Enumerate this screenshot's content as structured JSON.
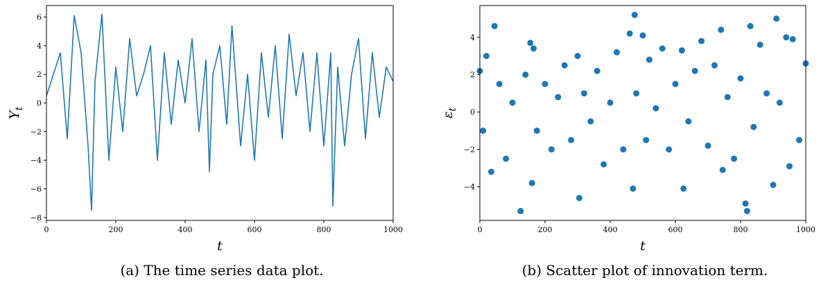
{
  "captions": {
    "a": "(a) The time series data plot.",
    "b": "(b) Scatter plot of innovation term."
  },
  "chart_data": [
    {
      "type": "line",
      "xlabel": "t",
      "ylabel": "Y_t",
      "xlim": [
        0,
        1000
      ],
      "ylim": [
        -8.2,
        6.8
      ],
      "xticks": [
        0,
        200,
        400,
        600,
        800,
        1000
      ],
      "yticks": [
        -8,
        -6,
        -4,
        -2,
        0,
        2,
        4,
        6
      ],
      "color": "#1f77b4",
      "grid": false,
      "series": [
        {
          "x": [
            0,
            20,
            40,
            60,
            80,
            100,
            120,
            130,
            140,
            160,
            180,
            200,
            220,
            240,
            260,
            280,
            300,
            320,
            340,
            360,
            380,
            400,
            420,
            440,
            460,
            470,
            480,
            500,
            520,
            535,
            560,
            580,
            600,
            620,
            640,
            660,
            680,
            700,
            720,
            740,
            760,
            780,
            800,
            820,
            826,
            840,
            860,
            880,
            900,
            920,
            940,
            960,
            980,
            1000
          ],
          "values": [
            0.5,
            2.0,
            3.5,
            -2.5,
            6.1,
            3.5,
            -3.0,
            -7.5,
            1.5,
            6.2,
            -4.0,
            2.5,
            -2.0,
            4.5,
            0.5,
            2.0,
            4.0,
            -4.0,
            3.5,
            -1.5,
            3.0,
            0.0,
            4.5,
            -2.0,
            3.0,
            -4.8,
            2.0,
            4.0,
            -1.5,
            5.4,
            -3.0,
            2.0,
            -4.0,
            3.5,
            -1.0,
            4.0,
            -2.5,
            4.8,
            0.5,
            3.5,
            -2.0,
            3.5,
            -3.0,
            3.5,
            -7.2,
            2.5,
            -3.0,
            2.0,
            4.5,
            -2.5,
            3.5,
            -1.0,
            2.5,
            1.5
          ]
        }
      ]
    },
    {
      "type": "scatter",
      "xlabel": "t",
      "ylabel": "ε_t",
      "xlim": [
        0,
        1000
      ],
      "ylim": [
        -5.8,
        5.7
      ],
      "xticks": [
        0,
        200,
        400,
        600,
        800,
        1000
      ],
      "yticks": [
        -4,
        -2,
        0,
        2,
        4
      ],
      "color": "#1f77b4",
      "grid": false,
      "series": [
        {
          "x": [
            0,
            10,
            20,
            35,
            45,
            60,
            80,
            100,
            125,
            140,
            155,
            160,
            165,
            175,
            200,
            220,
            240,
            260,
            280,
            300,
            305,
            320,
            340,
            360,
            380,
            400,
            420,
            440,
            460,
            470,
            475,
            480,
            500,
            510,
            520,
            540,
            560,
            580,
            600,
            620,
            625,
            640,
            660,
            680,
            700,
            720,
            740,
            745,
            760,
            780,
            800,
            815,
            820,
            830,
            840,
            860,
            880,
            900,
            910,
            920,
            940,
            950,
            960,
            980,
            1000
          ],
          "values": [
            2.2,
            -1.0,
            3.0,
            -3.2,
            4.6,
            1.5,
            -2.5,
            0.5,
            -5.3,
            2.0,
            3.7,
            -3.8,
            3.4,
            -1.0,
            1.5,
            -2.0,
            0.8,
            2.5,
            -1.5,
            3.0,
            -4.6,
            1.0,
            -0.5,
            2.2,
            -2.8,
            0.5,
            3.2,
            -2.0,
            4.2,
            -4.1,
            5.2,
            1.0,
            4.1,
            -1.5,
            2.8,
            0.2,
            3.4,
            -2.0,
            1.5,
            3.3,
            -4.1,
            -0.5,
            2.2,
            3.8,
            -1.8,
            2.5,
            4.4,
            -3.1,
            0.8,
            -2.5,
            1.8,
            -4.9,
            -5.3,
            4.6,
            -0.8,
            3.6,
            1.0,
            -3.9,
            5.0,
            0.5,
            4.0,
            -2.9,
            3.9,
            -1.5,
            2.6
          ]
        }
      ]
    }
  ]
}
